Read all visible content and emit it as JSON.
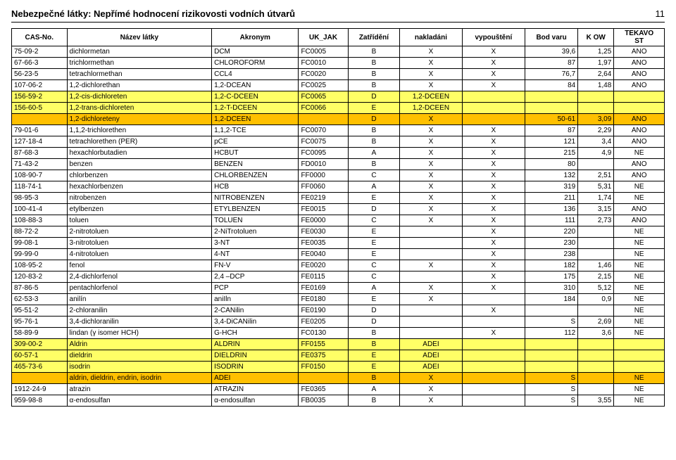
{
  "header": {
    "title": "Nebezpečné látky: Nepřímé hodnocení rizikovosti vodních útvarů",
    "page": "11"
  },
  "table": {
    "colors": {
      "yellow": "#ffff66",
      "orange": "#ffc000",
      "header_bg": "#ffffff"
    },
    "columns": [
      "CAS-No.",
      "Název látky",
      "Akronym",
      "UK_JAK",
      "Zatřídění",
      "nakladáni",
      "vypouštění",
      "Bod varu",
      "K OW",
      "TEKAVO ST"
    ],
    "col_align": [
      "left",
      "left",
      "left",
      "left",
      "center",
      "center",
      "center",
      "right",
      "right",
      "center"
    ],
    "rows": [
      {
        "c": [
          "75-09-2",
          "dichlormetan",
          "DCM",
          "FC0005",
          "B",
          "X",
          "X",
          "39,6",
          "1,25",
          "ANO"
        ],
        "bg": null
      },
      {
        "c": [
          "67-66-3",
          "trichlormethan",
          "CHLOROFORM",
          "FC0010",
          "B",
          "X",
          "X",
          "87",
          "1,97",
          "ANO"
        ],
        "bg": null
      },
      {
        "c": [
          "56-23-5",
          "tetrachlormethan",
          "CCL4",
          "FC0020",
          "B",
          "X",
          "X",
          "76,7",
          "2,64",
          "ANO"
        ],
        "bg": null
      },
      {
        "c": [
          "107-06-2",
          "1,2-dichlorethan",
          "1,2-DCEAN",
          "FC0025",
          "B",
          "X",
          "X",
          "84",
          "1,48",
          "ANO"
        ],
        "bg": null
      },
      {
        "c": [
          "156-59-2",
          "1,2-cis-dichloreten",
          "1,2-C-DCEEN",
          "FC0065",
          "D",
          "1,2-DCEEN",
          "",
          "",
          "",
          ""
        ],
        "bg": "yellow"
      },
      {
        "c": [
          "156-60-5",
          "1,2-trans-dichloreten",
          "1,2-T-DCEEN",
          "FC0066",
          "E",
          "1,2-DCEEN",
          "",
          "",
          "",
          ""
        ],
        "bg": "yellow"
      },
      {
        "c": [
          "",
          "1,2-dichloreteny",
          "1,2-DCEEN",
          "",
          "D",
          "X",
          "",
          "50-61",
          "3,09",
          "ANO"
        ],
        "bg": "orange"
      },
      {
        "c": [
          "79-01-6",
          "1,1,2-trichlorethen",
          "1,1,2-TCE",
          "FC0070",
          "B",
          "X",
          "X",
          "87",
          "2,29",
          "ANO"
        ],
        "bg": null
      },
      {
        "c": [
          "127-18-4",
          "tetrachlorethen (PER)",
          "pCE",
          "FC0075",
          "B",
          "X",
          "X",
          "121",
          "3,4",
          "ANO"
        ],
        "bg": null
      },
      {
        "c": [
          "87-68-3",
          "hexachlorbutadien",
          "HCBUT",
          "FC0095",
          "A",
          "X",
          "X",
          "215",
          "4,9",
          "NE"
        ],
        "bg": null
      },
      {
        "c": [
          "71-43-2",
          "benzen",
          "BENZEN",
          "FD0010",
          "B",
          "X",
          "X",
          "80",
          "",
          "ANO"
        ],
        "bg": null
      },
      {
        "c": [
          "108-90-7",
          "chlorbenzen",
          "CHLORBENZEN",
          "FF0000",
          "C",
          "X",
          "X",
          "132",
          "2,51",
          "ANO"
        ],
        "bg": null
      },
      {
        "c": [
          "118-74-1",
          "hexachlorbenzen",
          "HCB",
          "FF0060",
          "A",
          "X",
          "X",
          "319",
          "5,31",
          "NE"
        ],
        "bg": null
      },
      {
        "c": [
          "98-95-3",
          "nitrobenzen",
          "NITROBENZEN",
          "FE0219",
          "E",
          "X",
          "X",
          "211",
          "1,74",
          "NE"
        ],
        "bg": null
      },
      {
        "c": [
          "100-41-4",
          "etylbenzen",
          "ETYLBENZEN",
          "FE0015",
          "D",
          "X",
          "X",
          "136",
          "3,15",
          "ANO"
        ],
        "bg": null
      },
      {
        "c": [
          "108-88-3",
          "toluen",
          "TOLUEN",
          "FE0000",
          "C",
          "X",
          "X",
          "111",
          "2,73",
          "ANO"
        ],
        "bg": null
      },
      {
        "c": [
          "88-72-2",
          "2-nitrotoluen",
          "2-NiTrotoluen",
          "FE0030",
          "E",
          "",
          "X",
          "220",
          "",
          "NE"
        ],
        "bg": null
      },
      {
        "c": [
          "99-08-1",
          "3-nitrotoluen",
          "3-NT",
          "FE0035",
          "E",
          "",
          "X",
          "230",
          "",
          "NE"
        ],
        "bg": null
      },
      {
        "c": [
          "99-99-0",
          "4-nitrotoluen",
          "4-NT",
          "FE0040",
          "E",
          "",
          "X",
          "238",
          "",
          "NE"
        ],
        "bg": null
      },
      {
        "c": [
          "108-95-2",
          "fenol",
          "FN-V",
          "FE0020",
          "C",
          "X",
          "X",
          "182",
          "1,46",
          "NE"
        ],
        "bg": null
      },
      {
        "c": [
          "120-83-2",
          "2,4-dichlorfenol",
          "2,4 –DCP",
          "FE0115",
          "C",
          "",
          "X",
          "175",
          "2,15",
          "NE"
        ],
        "bg": null
      },
      {
        "c": [
          "87-86-5",
          "pentachlorfenol",
          "PCP",
          "FE0169",
          "A",
          "X",
          "X",
          "310",
          "5,12",
          "NE"
        ],
        "bg": null
      },
      {
        "c": [
          "62-53-3",
          "anilín",
          "aniIln",
          "FE0180",
          "E",
          "X",
          "",
          "184",
          "0,9",
          "NE"
        ],
        "bg": null
      },
      {
        "c": [
          "95-51-2",
          "2-chloranilin",
          "2-CANilin",
          "FE0190",
          "D",
          "",
          "X",
          "",
          "",
          "NE"
        ],
        "bg": null
      },
      {
        "c": [
          "95-76-1",
          "3,4-dichloranilin",
          "3,4-DiCANilin",
          "FE0205",
          "D",
          "",
          "",
          "S",
          "2,69",
          "NE"
        ],
        "bg": null
      },
      {
        "c": [
          "58-89-9",
          "lindan (γ isomer HCH)",
          "G-HCH",
          "FC0130",
          "B",
          "",
          "X",
          "112",
          "3,6",
          "NE"
        ],
        "bg": null
      },
      {
        "c": [
          "309-00-2",
          "Aldrin",
          "ALDRIN",
          "FF0155",
          "B",
          "ADEI",
          "",
          "",
          "",
          ""
        ],
        "bg": "yellow"
      },
      {
        "c": [
          "60-57-1",
          "dieldrin",
          "DIELDRIN",
          "FE0375",
          "E",
          "ADEI",
          "",
          "",
          "",
          ""
        ],
        "bg": "yellow"
      },
      {
        "c": [
          "465-73-6",
          "isodrin",
          "ISODRIN",
          "FF0150",
          "E",
          "ADEI",
          "",
          "",
          "",
          ""
        ],
        "bg": "yellow"
      },
      {
        "c": [
          "",
          "aldrin, dieldrin, endrin, isodrin",
          "ADEI",
          "",
          "B",
          "X",
          "",
          "S",
          "",
          "NE"
        ],
        "bg": "orange"
      },
      {
        "c": [
          "1912-24-9",
          "atrazin",
          "ATRAZIN",
          "FE0365",
          "A",
          "X",
          "",
          "S",
          "",
          "NE"
        ],
        "bg": null
      },
      {
        "c": [
          "959-98-8",
          "α-endosulfan",
          "α-endosulfan",
          "FB0035",
          "B",
          "X",
          "",
          "S",
          "3,55",
          "NE"
        ],
        "bg": null
      }
    ]
  }
}
